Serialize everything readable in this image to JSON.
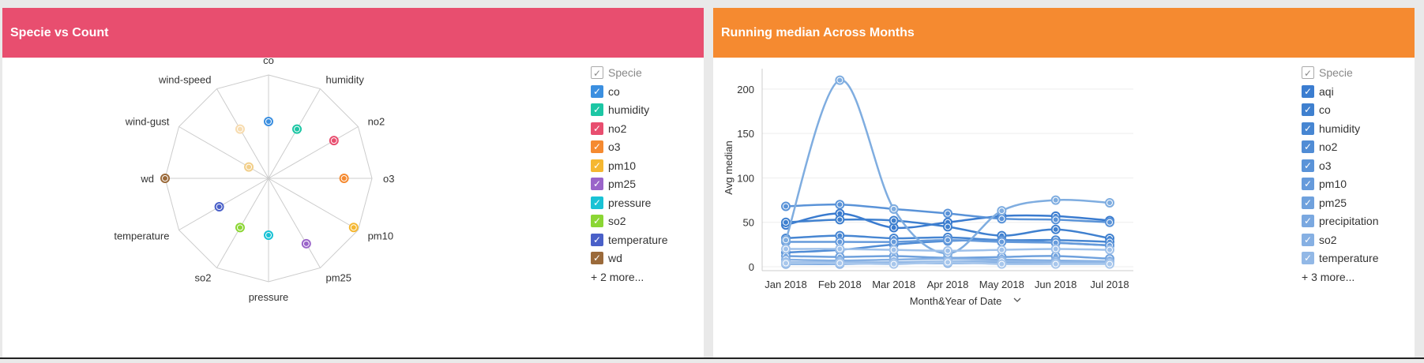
{
  "panels": {
    "left_title": "Specie vs Count",
    "right_title": "Running median Across Months"
  },
  "legend_left": {
    "header": "Specie",
    "items": [
      {
        "label": "co",
        "color": "#3b8fe0"
      },
      {
        "label": "humidity",
        "color": "#1cc6a4"
      },
      {
        "label": "no2",
        "color": "#e84e6f"
      },
      {
        "label": "o3",
        "color": "#f58a30"
      },
      {
        "label": "pm10",
        "color": "#f5b731"
      },
      {
        "label": "pm25",
        "color": "#9a64c9"
      },
      {
        "label": "pressure",
        "color": "#19c2d5"
      },
      {
        "label": "so2",
        "color": "#8bd634"
      },
      {
        "label": "temperature",
        "color": "#4a60c8"
      },
      {
        "label": "wd",
        "color": "#9b6a3a"
      }
    ],
    "more": "+ 2 more..."
  },
  "legend_right": {
    "header": "Specie",
    "items": [
      {
        "label": "aqi",
        "color": "#3b7dd0"
      },
      {
        "label": "co",
        "color": "#3f80cf"
      },
      {
        "label": "humidity",
        "color": "#4786d2"
      },
      {
        "label": "no2",
        "color": "#508cd5"
      },
      {
        "label": "o3",
        "color": "#5a93d8"
      },
      {
        "label": "pm10",
        "color": "#659adb"
      },
      {
        "label": "pm25",
        "color": "#6fa1dd"
      },
      {
        "label": "precipitation",
        "color": "#7aa8e0"
      },
      {
        "label": "so2",
        "color": "#86b0e3"
      },
      {
        "label": "temperature",
        "color": "#92b8e6"
      }
    ],
    "more": "+ 3 more..."
  },
  "chart_data": [
    {
      "type": "radar",
      "title": "Specie vs Count",
      "categories": [
        "co",
        "humidity",
        "no2",
        "o3",
        "pm10",
        "pm25",
        "pressure",
        "so2",
        "temperature",
        "wd",
        "wind-gust",
        "wind-speed"
      ],
      "values": [
        0.55,
        0.55,
        0.73,
        0.73,
        0.95,
        0.73,
        0.55,
        0.55,
        0.55,
        1.0,
        0.22,
        0.55
      ],
      "colors": [
        "#3b8fe0",
        "#1cc6a4",
        "#e84e6f",
        "#f58a30",
        "#f5b731",
        "#9a64c9",
        "#19c2d5",
        "#8bd634",
        "#4a60c8",
        "#9b6a3a",
        "#f2cf8a",
        "#f7dcb0"
      ],
      "series_legend": "Specie"
    },
    {
      "type": "line",
      "title": "Running median Across Months",
      "xlabel": "Month&Year of Date",
      "ylabel": "Avg median",
      "x": [
        "Jan 2018",
        "Feb 2018",
        "Mar 2018",
        "Apr 2018",
        "May 2018",
        "Jun 2018",
        "Jul 2018"
      ],
      "yticks": [
        0,
        50,
        100,
        150,
        200
      ],
      "ylim": [
        0,
        220
      ],
      "series": [
        {
          "values": [
            47,
            60,
            44,
            50,
            57,
            57,
            52
          ],
          "color": "#3a7bcf"
        },
        {
          "values": [
            50,
            53,
            52,
            45,
            35,
            42,
            32
          ],
          "color": "#3f80cf"
        },
        {
          "values": [
            32,
            35,
            32,
            33,
            30,
            30,
            28
          ],
          "color": "#4786d2"
        },
        {
          "values": [
            16,
            19,
            25,
            29,
            30,
            27,
            24
          ],
          "color": "#508cd5"
        },
        {
          "values": [
            68,
            70,
            65,
            60,
            54,
            53,
            50
          ],
          "color": "#5a93d8"
        },
        {
          "values": [
            28,
            28,
            28,
            30,
            28,
            27,
            24
          ],
          "color": "#659adb"
        },
        {
          "values": [
            12,
            11,
            12,
            10,
            11,
            12,
            9
          ],
          "color": "#6fa1dd"
        },
        {
          "values": [
            3,
            3,
            4,
            4,
            4,
            4,
            4
          ],
          "color": "#7aa8e0"
        },
        {
          "values": [
            8,
            7,
            8,
            9,
            8,
            7,
            6
          ],
          "color": "#86b0e3"
        },
        {
          "values": [
            30,
            210,
            65,
            15,
            63,
            75,
            72
          ],
          "color": "#7fade0"
        },
        {
          "values": [
            5,
            5,
            5,
            6,
            6,
            5,
            5
          ],
          "color": "#92b8e6"
        },
        {
          "values": [
            20,
            20,
            19,
            18,
            19,
            20,
            19
          ],
          "color": "#9fc1ea"
        },
        {
          "values": [
            4,
            4,
            3,
            5,
            3,
            3,
            3
          ],
          "color": "#a8c7ec"
        }
      ]
    }
  ]
}
